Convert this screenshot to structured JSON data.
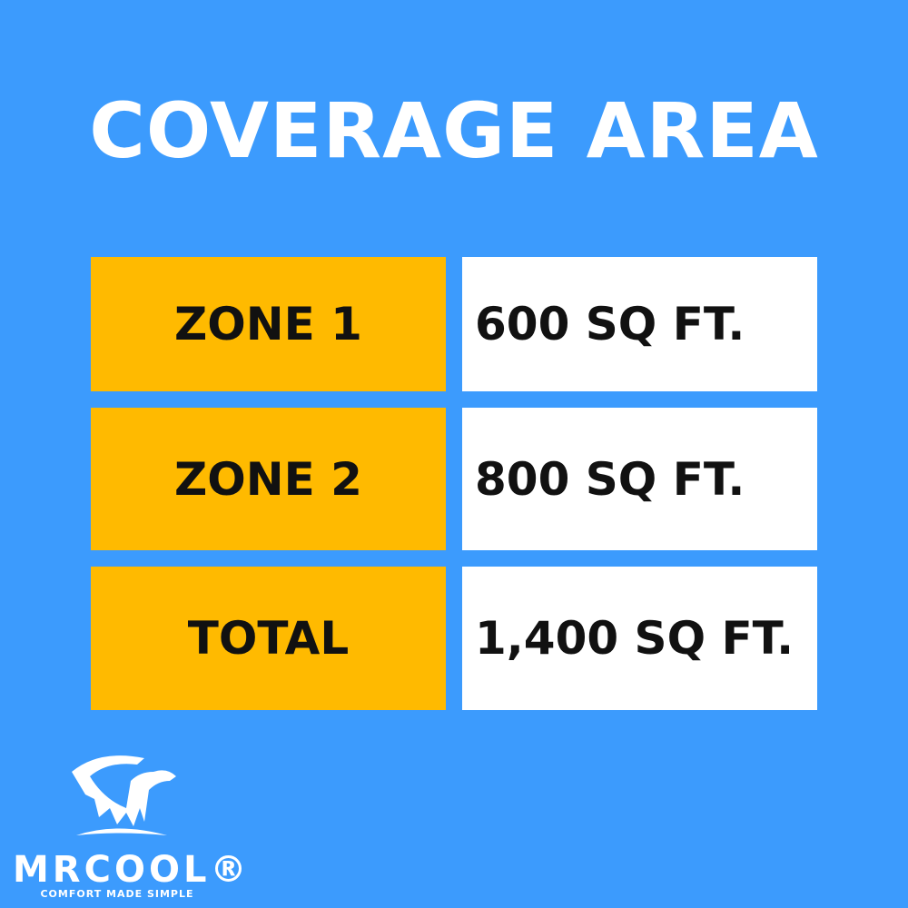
{
  "title": "COVERAGE AREA",
  "rows": [
    {
      "label": "ZONE 1",
      "value": "600 SQ FT."
    },
    {
      "label": "ZONE 2",
      "value": "800 SQ FT."
    },
    {
      "label": "TOTAL",
      "value": "1,400 SQ FT."
    }
  ],
  "logo": {
    "brand": "MRCOOL®",
    "tagline": "COMFORT MADE SIMPLE",
    "icon": "polar-bear-icon"
  },
  "colors": {
    "background": "#3c9bfd",
    "label_fill": "#ffba00",
    "value_fill": "#ffffff"
  }
}
